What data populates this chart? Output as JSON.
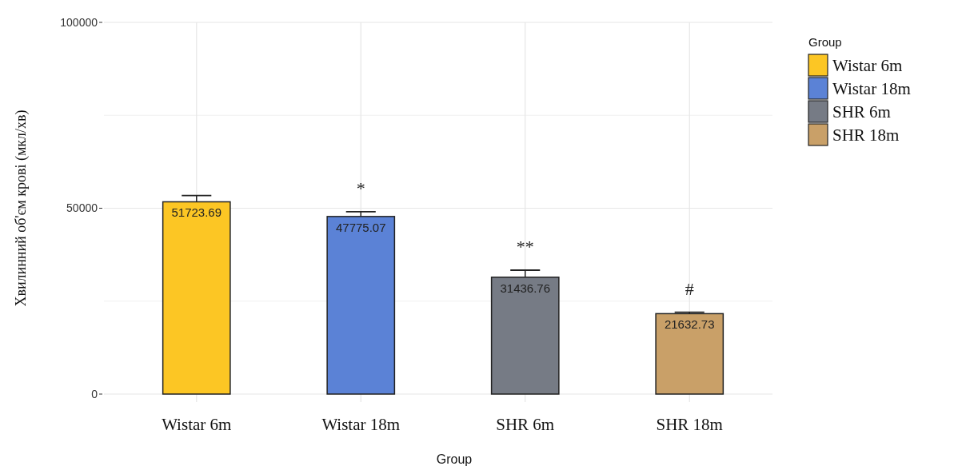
{
  "chart_data": {
    "type": "bar",
    "xlabel": "Group",
    "ylabel": "Хвилинний об'єм крові (мкл/хв)",
    "legend_title": "Group",
    "categories": [
      "Wistar 6m",
      "Wistar 18m",
      "SHR 6m",
      "SHR 18m"
    ],
    "series": [
      {
        "name": "Wistar 6m",
        "color": "#fcc624",
        "values": [
          51723.69,
          null,
          null,
          null
        ],
        "errors": [
          1700,
          null,
          null,
          null
        ]
      },
      {
        "name": "Wistar 18m",
        "color": "#5b82d6",
        "values": [
          null,
          47775.07,
          null,
          null
        ],
        "errors": [
          null,
          1300,
          null,
          null
        ]
      },
      {
        "name": "SHR 6m",
        "color": "#767b85",
        "values": [
          null,
          null,
          31436.76,
          null
        ],
        "errors": [
          null,
          null,
          1900,
          null
        ]
      },
      {
        "name": "SHR 18m",
        "color": "#c9a068",
        "values": [
          null,
          null,
          null,
          21632.73
        ],
        "errors": [
          null,
          null,
          null,
          400
        ]
      }
    ],
    "data_labels": true,
    "ylim": [
      0,
      100000
    ],
    "yticks": [
      0,
      {
        "value": 25000,
        "label": null
      },
      50000,
      {
        "value": 75000,
        "label": null
      },
      100000
    ],
    "grid": true,
    "legend": "right",
    "annotations": [
      "*",
      "**",
      "#"
    ]
  }
}
